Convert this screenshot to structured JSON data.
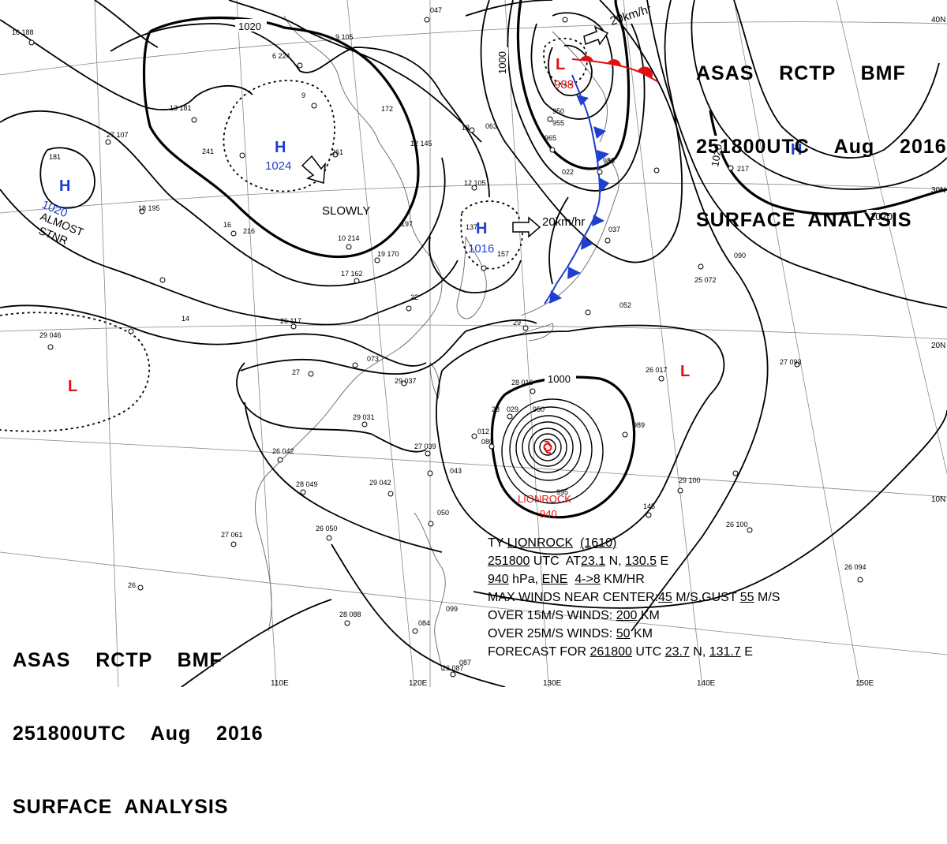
{
  "header": {
    "line1": "ASAS    RCTP    BMF",
    "line2": "251800UTC    Aug    2016",
    "line3": "SURFACE  ANALYSIS"
  },
  "isobars": {
    "label_1020_nw": "1020",
    "label_1000_n": "1000",
    "label_1000_ty": "1000",
    "label_1020_ne": "1020",
    "label_1020_ne2": "1020"
  },
  "pressure_centers": [
    {
      "id": "h-china-north",
      "symbol": "H",
      "value": "1024",
      "color": "#1f3fd0",
      "motion": "SLOWLY"
    },
    {
      "id": "h-west",
      "symbol": "H",
      "value": "1020",
      "color": "#1f3fd0",
      "motion": "ALMOST STNR"
    },
    {
      "id": "h-korea",
      "symbol": "H",
      "value": "1016",
      "color": "#1f3fd0",
      "motion": "20km/hr"
    },
    {
      "id": "h-pacific",
      "symbol": "H",
      "value": "",
      "color": "#1f3fd0"
    },
    {
      "id": "l-okhotsk",
      "symbol": "L",
      "value": "988",
      "color": "#e01010",
      "motion": "20km/hr"
    },
    {
      "id": "l-west",
      "symbol": "L",
      "value": "",
      "color": "#e01010"
    },
    {
      "id": "l-east",
      "symbol": "L",
      "value": "",
      "color": "#e01010"
    }
  ],
  "typhoon": {
    "name": "LIONROCK",
    "pressure": "940",
    "info": {
      "line1_prefix": "TY ",
      "line1_name": "LIONROCK",
      "line1_num": "(1610)",
      "line2_time": "251800",
      "line2_mid": " UTC  AT",
      "line2_lat": "23.1",
      "line2_mid2": " N, ",
      "line2_lon": "130.5",
      "line2_suffix": " E",
      "line3_press": "940",
      "line3_mid": " hPa, ",
      "line3_dir": "ENE",
      "line3_speed": "4->8",
      "line3_suffix": " KM/HR",
      "line4_prefix": "MAX WINDS NEAR CENTER:",
      "line4_max": "45",
      "line4_mid": " M/S,GUST ",
      "line4_gust": "55",
      "line4_suffix": " M/S",
      "line5_prefix": "OVER 15M/S WINDS: ",
      "line5_val": "200",
      "line5_suffix": " KM",
      "line6_prefix": "OVER 25M/S WINDS: ",
      "line6_val": "50",
      "line6_suffix": " KM",
      "line7_prefix": "FORECAST FOR ",
      "line7_time": "261800",
      "line7_mid": " UTC ",
      "line7_lat": "23.7",
      "line7_mid2": " N, ",
      "line7_lon": "131.7",
      "line7_suffix": " E"
    }
  },
  "grid_labels": {
    "lat_40n": "40N",
    "lat_30n": "30N",
    "lat_20n": "20N",
    "lat_10n": "10N",
    "lon_110e": "110E",
    "lon_120e": "120E",
    "lon_130e": "130E",
    "lon_140e": "140E",
    "lon_150e": "150E"
  },
  "station_labels": [
    "16 188",
    "6 224",
    "9",
    "241",
    "261",
    "27 107",
    "181",
    "18 195",
    "16",
    "216",
    "13 181",
    "9 105",
    "12 145",
    "172",
    "12",
    "12 105",
    "197",
    "10 214",
    "19 170",
    "137",
    "157",
    "17 162",
    "22",
    "26 117",
    "073",
    "27",
    "29 037",
    "29 031",
    "29 042",
    "28 049",
    "26 050",
    "27 061",
    "26 042",
    "27 039",
    "043",
    "012",
    "080",
    "029",
    "950",
    "28",
    "28 016",
    "29",
    "950",
    "965",
    "985",
    "022",
    "037",
    "052",
    "25 072",
    "090",
    "26 017",
    "27 093",
    "217",
    "989",
    "29 100",
    "145",
    "26 100",
    "26 094",
    "050",
    "087",
    "26 087",
    "28 088",
    "084",
    "099",
    "047",
    "063",
    "14",
    "29 046",
    "26",
    "955",
    "995"
  ],
  "colors": {
    "warm_front": "#e01010",
    "cold_front": "#1f3fd0",
    "isobar": "#000000",
    "high": "#1f3fd0",
    "low": "#e01010",
    "typhoon": "#e01010"
  }
}
